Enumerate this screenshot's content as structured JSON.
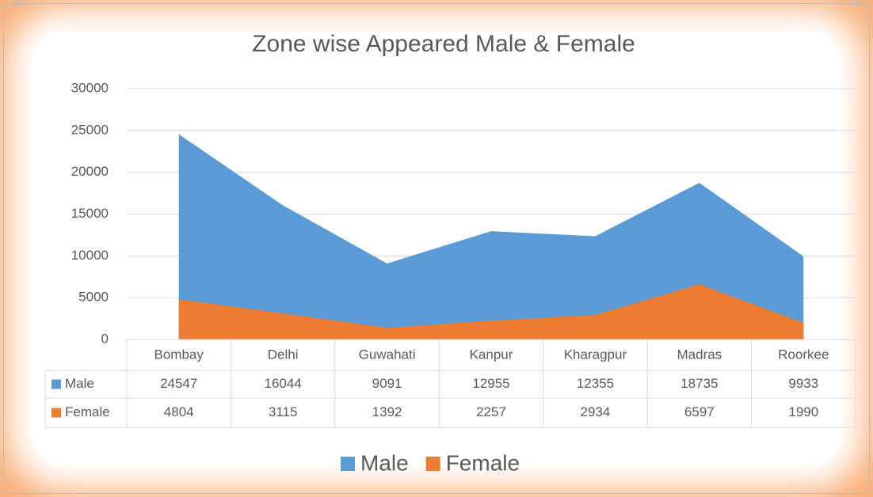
{
  "chart_data": {
    "type": "area",
    "title": "Zone wise Appeared Male & Female",
    "categories": [
      "Bombay",
      "Delhi",
      "Guwahati",
      "Kanpur",
      "Kharagpur",
      "Madras",
      "Roorkee"
    ],
    "series": [
      {
        "name": "Male",
        "color": "#5b9bd5",
        "values": [
          24547,
          16044,
          9091,
          12955,
          12355,
          18735,
          9933
        ]
      },
      {
        "name": "Female",
        "color": "#ed7d31",
        "values": [
          4804,
          3115,
          1392,
          2257,
          2934,
          6597,
          1990
        ]
      }
    ],
    "ylim": [
      0,
      30000
    ],
    "yticks": [
      0,
      5000,
      10000,
      15000,
      20000,
      25000,
      30000
    ],
    "grid": true,
    "legend": "bottom",
    "data_table": true
  }
}
